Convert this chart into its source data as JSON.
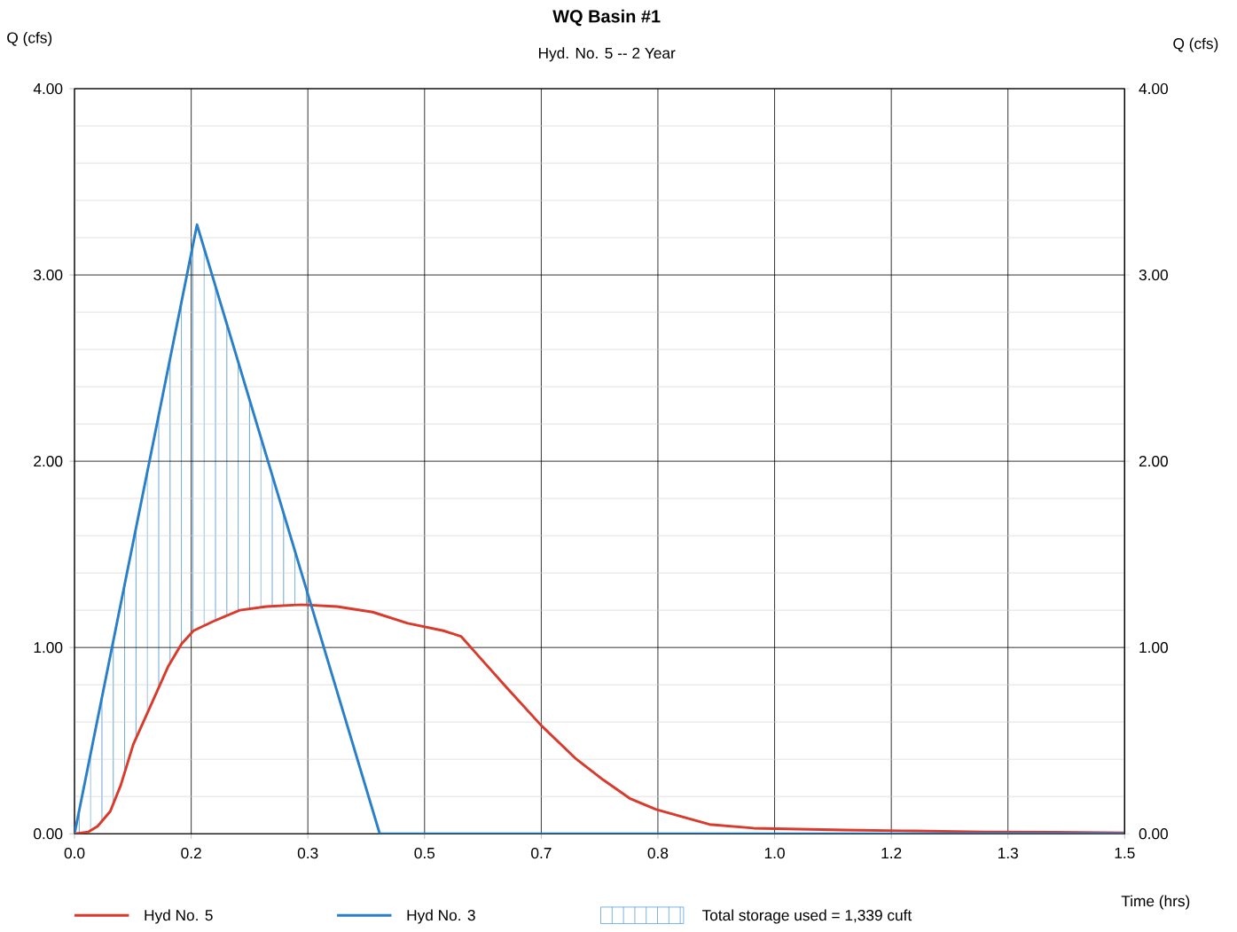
{
  "chart_data": {
    "type": "line",
    "title": "WQ Basin #1",
    "subtitle": "Hyd. No. 5 -- 2 Year",
    "xlabel": "Time (hrs)",
    "ylabel": "Q (cfs)",
    "y2label": "Q (cfs)",
    "annotations": [
      "Total storage used = 1,339 cuft"
    ],
    "xlim": [
      0,
      1.5
    ],
    "ylim": [
      0,
      4
    ],
    "y2lim": [
      0,
      4
    ],
    "xticks": [
      {
        "value": 0,
        "label": "0.0"
      },
      {
        "value": 0.1667,
        "label": "0.2"
      },
      {
        "value": 0.3333,
        "label": "0.3"
      },
      {
        "value": 0.5,
        "label": "0.5"
      },
      {
        "value": 0.6667,
        "label": "0.7"
      },
      {
        "value": 0.8333,
        "label": "0.8"
      },
      {
        "value": 1.0,
        "label": "1.0"
      },
      {
        "value": 1.1667,
        "label": "1.2"
      },
      {
        "value": 1.3333,
        "label": "1.3"
      },
      {
        "value": 1.5,
        "label": "1.5"
      }
    ],
    "yticks": [
      {
        "value": 0,
        "label": "0.00"
      },
      {
        "value": 0.2,
        "label": null
      },
      {
        "value": 0.4,
        "label": null
      },
      {
        "value": 0.6,
        "label": null
      },
      {
        "value": 0.8,
        "label": null
      },
      {
        "value": 1,
        "label": "1.00"
      },
      {
        "value": 1.2,
        "label": null
      },
      {
        "value": 1.4,
        "label": null
      },
      {
        "value": 1.6,
        "label": null
      },
      {
        "value": 1.8,
        "label": null
      },
      {
        "value": 2,
        "label": "2.00"
      },
      {
        "value": 2.2,
        "label": null
      },
      {
        "value": 2.4,
        "label": null
      },
      {
        "value": 2.6,
        "label": null
      },
      {
        "value": 2.8,
        "label": null
      },
      {
        "value": 3,
        "label": "3.00"
      },
      {
        "value": 3.2,
        "label": null
      },
      {
        "value": 3.4,
        "label": null
      },
      {
        "value": 3.6,
        "label": null
      },
      {
        "value": 3.8,
        "label": null
      },
      {
        "value": 4,
        "label": "4.00"
      }
    ],
    "y2ticks": [
      {
        "value": 0,
        "label": "0.00"
      },
      {
        "value": 1,
        "label": "1.00"
      },
      {
        "value": 2,
        "label": "2.00"
      },
      {
        "value": 3,
        "label": "3.00"
      },
      {
        "value": 4,
        "label": "4.00"
      }
    ],
    "grid": true,
    "legend": "bottom",
    "marker": "none",
    "line_style": "solid",
    "series": [
      {
        "name": "Hyd No. 5",
        "color": "#d93a2b",
        "x": [
          0,
          0.02,
          0.033,
          0.051,
          0.066,
          0.084,
          0.109,
          0.134,
          0.153,
          0.17,
          0.198,
          0.236,
          0.274,
          0.324,
          0.375,
          0.426,
          0.476,
          0.527,
          0.552,
          0.571,
          0.616,
          0.667,
          0.717,
          0.755,
          0.793,
          0.831,
          0.869,
          0.907,
          0.97,
          1.1,
          1.2,
          1.3,
          1.4,
          1.5
        ],
        "values": [
          0,
          0.01,
          0.04,
          0.12,
          0.26,
          0.48,
          0.69,
          0.9,
          1.02,
          1.09,
          1.14,
          1.2,
          1.22,
          1.23,
          1.22,
          1.19,
          1.13,
          1.09,
          1.06,
          0.98,
          0.79,
          0.58,
          0.4,
          0.29,
          0.19,
          0.13,
          0.09,
          0.05,
          0.03,
          0.02,
          0.015,
          0.01,
          0.008,
          0.005
        ]
      },
      {
        "name": "Hyd No. 3",
        "color": "#2a7fc9",
        "x": [
          0,
          0.175,
          0.436,
          1.5
        ],
        "values": [
          0,
          3.27,
          0,
          0
        ]
      }
    ]
  }
}
